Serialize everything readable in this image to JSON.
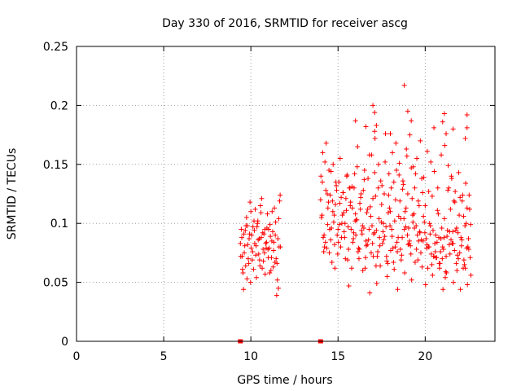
{
  "chart_data": {
    "type": "scatter",
    "title": "Day 330 of 2016, SRMTID for receiver ascg",
    "xlabel": "GPS time / hours",
    "ylabel": "SRMTID / TECUs",
    "xlim": [
      0,
      24
    ],
    "ylim": [
      0,
      0.25
    ],
    "xticks": [
      0,
      5,
      10,
      15,
      20
    ],
    "xtick_labels": [
      "0",
      "5",
      "10",
      "15",
      "20"
    ],
    "yticks": [
      0,
      0.05,
      0.1,
      0.15,
      0.2,
      0.25
    ],
    "ytick_labels": [
      "0",
      "0.05",
      "0.1",
      "0.15",
      "0.2",
      "0.25"
    ],
    "grid": true,
    "marker": "+",
    "colors": {
      "series": "#ff0000",
      "axes": "#000000",
      "grid": "#a0a0a0"
    },
    "series": [
      {
        "name": "SRMTID",
        "x": [
          9.4,
          9.5,
          9.6,
          9.7,
          9.8,
          9.9,
          10.0,
          10.1,
          10.2,
          10.3,
          10.4,
          10.5,
          10.6,
          10.7,
          10.8,
          10.9,
          11.0,
          11.1,
          11.2,
          11.3,
          11.4,
          11.5,
          11.6,
          11.7,
          9.45,
          9.55,
          9.65,
          9.75,
          9.85,
          9.95,
          10.05,
          10.15,
          10.25,
          10.35,
          10.45,
          10.55,
          10.65,
          10.75,
          10.85,
          10.95,
          11.05,
          11.15,
          11.25,
          11.35,
          11.45,
          11.55,
          11.65,
          9.42,
          9.58,
          9.72,
          9.88,
          10.02,
          10.18,
          10.32,
          10.48,
          10.62,
          10.78,
          10.92,
          11.08,
          11.22,
          11.38,
          11.52,
          11.68,
          9.48,
          9.62,
          9.78,
          9.92,
          10.08,
          10.22,
          10.38,
          10.52,
          10.68,
          10.82,
          10.98,
          11.12,
          11.28,
          11.42,
          11.58,
          9.52,
          9.68,
          9.82,
          9.98,
          10.12,
          10.28,
          10.42,
          10.58,
          10.72,
          10.88,
          11.02,
          11.18,
          11.32,
          11.48,
          11.62,
          14.0,
          14.1,
          14.2,
          14.3,
          14.4,
          14.5,
          14.6,
          14.7,
          14.8,
          14.9,
          15.0,
          15.1,
          15.2,
          15.3,
          15.4,
          15.5,
          15.6,
          15.7,
          15.8,
          15.9,
          16.0,
          16.1,
          16.2,
          16.3,
          16.4,
          16.5,
          16.6,
          16.7,
          16.8,
          16.9,
          17.0,
          17.1,
          17.2,
          17.3,
          17.4,
          17.5,
          17.6,
          17.7,
          17.8,
          17.9,
          18.0,
          18.1,
          18.2,
          18.3,
          18.4,
          18.5,
          18.6,
          18.7,
          18.8,
          18.9,
          19.0,
          19.1,
          19.2,
          19.3,
          19.4,
          19.5,
          19.6,
          19.7,
          19.8,
          19.9,
          20.0,
          20.1,
          20.2,
          20.3,
          20.4,
          20.5,
          20.6,
          20.7,
          20.8,
          20.9,
          21.0,
          21.1,
          21.2,
          21.3,
          21.4,
          21.5,
          21.6,
          21.7,
          21.8,
          21.9,
          22.0,
          22.1,
          22.2,
          22.3,
          22.4,
          22.5,
          22.6,
          14.05,
          14.15,
          14.25,
          14.35,
          14.45,
          14.55,
          14.65,
          14.75,
          14.85,
          14.95,
          15.05,
          15.15,
          15.25,
          15.35,
          15.45,
          15.55,
          15.65,
          15.75,
          15.85,
          15.95,
          16.05,
          16.15,
          16.25,
          16.35,
          16.45,
          16.55,
          16.65,
          16.75,
          16.85,
          16.95,
          17.05,
          17.15,
          17.25,
          17.35,
          17.45,
          17.55,
          17.65,
          17.75,
          17.85,
          17.95,
          18.05,
          18.15,
          18.25,
          18.35,
          18.45,
          18.55,
          18.65,
          18.75,
          18.85,
          18.95,
          19.05,
          19.15,
          19.25,
          19.35,
          19.45,
          19.55,
          19.65,
          19.75,
          19.85,
          19.95,
          20.05,
          20.15,
          20.25,
          20.35,
          20.45,
          20.55,
          20.65,
          20.75,
          20.85,
          20.95,
          21.05,
          21.15,
          21.25,
          21.35,
          21.45,
          21.55,
          21.65,
          21.75,
          21.85,
          21.95,
          22.05,
          22.15,
          22.25,
          22.35,
          22.45,
          22.55,
          14.02,
          14.22,
          14.42,
          14.62,
          14.82,
          15.02,
          15.22,
          15.42,
          15.62,
          15.82,
          16.02,
          16.22,
          16.42,
          16.62,
          16.82,
          17.02,
          17.22,
          17.42,
          17.62,
          17.82,
          18.02,
          18.22,
          18.42,
          18.62,
          18.82,
          19.02,
          19.22,
          19.42,
          19.62,
          19.82,
          20.02,
          20.22,
          20.42,
          20.62,
          20.82,
          21.02,
          21.22,
          21.42,
          21.62,
          21.82,
          22.02,
          22.22,
          22.42,
          22.62,
          14.12,
          14.32,
          14.52,
          14.72,
          14.92,
          15.12,
          15.32,
          15.52,
          15.72,
          15.92,
          16.12,
          16.32,
          16.52,
          16.72,
          16.92,
          17.12,
          17.32,
          17.52,
          17.72,
          17.92,
          18.12,
          18.32,
          18.52,
          18.72,
          18.92,
          19.12,
          19.32,
          19.52,
          19.72,
          19.92,
          20.12,
          20.32,
          20.52,
          20.72,
          20.92,
          21.12,
          21.32,
          21.52,
          21.72,
          21.92,
          22.12,
          22.32,
          22.52,
          14.08,
          14.28,
          14.48,
          14.68,
          14.88,
          15.08,
          15.28,
          15.48,
          15.68,
          15.88,
          16.08,
          16.28,
          16.48,
          16.68,
          16.88,
          17.08,
          17.28,
          17.48,
          17.68,
          17.88,
          18.08,
          18.28,
          18.48,
          18.68,
          18.88,
          19.08,
          19.28,
          19.48,
          19.68,
          19.88,
          20.08,
          20.28,
          20.48,
          20.68,
          20.88,
          21.08,
          21.28,
          21.48,
          21.68,
          21.88,
          22.08,
          22.28,
          22.48,
          14.18,
          14.38,
          14.58,
          14.78,
          14.98,
          15.18,
          15.38,
          15.58,
          15.78,
          15.98,
          16.18,
          16.38,
          16.58,
          16.78,
          16.98,
          17.18,
          17.38,
          17.58,
          17.78,
          17.98,
          18.18,
          18.38,
          18.58,
          18.78,
          18.98,
          19.18,
          19.38,
          19.58,
          19.78,
          19.98,
          20.18,
          20.38,
          20.58,
          20.78,
          20.98,
          21.18,
          21.38,
          21.58,
          21.78,
          21.98,
          22.18,
          22.38,
          22.58,
          18.8,
          17.0,
          17.1,
          19.0,
          21.1,
          22.4,
          22.4,
          21.0,
          19.2,
          17.2,
          16.0,
          20.5,
          21.6,
          21.2,
          22.3,
          17.1,
          18.0,
          16.6
        ],
        "y": [
          0.083,
          0.072,
          0.091,
          0.064,
          0.098,
          0.087,
          0.11,
          0.076,
          0.094,
          0.081,
          0.102,
          0.069,
          0.088,
          0.078,
          0.095,
          0.084,
          0.071,
          0.099,
          0.085,
          0.077,
          0.09,
          0.066,
          0.104,
          0.08,
          0.095,
          0.058,
          0.081,
          0.105,
          0.07,
          0.118,
          0.09,
          0.061,
          0.112,
          0.097,
          0.074,
          0.115,
          0.062,
          0.091,
          0.083,
          0.108,
          0.079,
          0.06,
          0.093,
          0.113,
          0.07,
          0.087,
          0.119,
          0.072,
          0.044,
          0.098,
          0.066,
          0.079,
          0.102,
          0.054,
          0.087,
          0.121,
          0.075,
          0.096,
          0.058,
          0.11,
          0.067,
          0.052,
          0.124,
          0.088,
          0.075,
          0.053,
          0.091,
          0.069,
          0.083,
          0.1,
          0.064,
          0.092,
          0.057,
          0.078,
          0.089,
          0.063,
          0.101,
          0.045,
          0.061,
          0.094,
          0.082,
          0.05,
          0.097,
          0.073,
          0.086,
          0.109,
          0.068,
          0.079,
          0.095,
          0.071,
          0.084,
          0.039,
          0.08,
          0.12,
          0.135,
          0.09,
          0.128,
          0.099,
          0.075,
          0.144,
          0.11,
          0.082,
          0.132,
          0.095,
          0.117,
          0.088,
          0.126,
          0.1,
          0.14,
          0.078,
          0.115,
          0.131,
          0.092,
          0.108,
          0.148,
          0.07,
          0.122,
          0.098,
          0.137,
          0.085,
          0.112,
          0.158,
          0.075,
          0.121,
          0.143,
          0.094,
          0.13,
          0.081,
          0.116,
          0.1,
          0.152,
          0.068,
          0.124,
          0.11,
          0.089,
          0.135,
          0.12,
          0.076,
          0.141,
          0.104,
          0.129,
          0.095,
          0.113,
          0.125,
          0.085,
          0.147,
          0.101,
          0.13,
          0.078,
          0.119,
          0.092,
          0.138,
          0.106,
          0.115,
          0.082,
          0.127,
          0.098,
          0.123,
          0.072,
          0.09,
          0.111,
          0.066,
          0.087,
          0.08,
          0.104,
          0.072,
          0.128,
          0.093,
          0.14,
          0.083,
          0.118,
          0.096,
          0.07,
          0.122,
          0.086,
          0.106,
          0.062,
          0.113,
          0.078,
          0.099,
          0.105,
          0.088,
          0.152,
          0.079,
          0.118,
          0.124,
          0.067,
          0.101,
          0.116,
          0.09,
          0.135,
          0.08,
          0.107,
          0.093,
          0.121,
          0.069,
          0.13,
          0.095,
          0.084,
          0.142,
          0.103,
          0.076,
          0.117,
          0.094,
          0.128,
          0.062,
          0.109,
          0.086,
          0.114,
          0.098,
          0.091,
          0.123,
          0.072,
          0.104,
          0.136,
          0.083,
          0.125,
          0.097,
          0.066,
          0.113,
          0.13,
          0.079,
          0.102,
          0.145,
          0.088,
          0.119,
          0.073,
          0.133,
          0.11,
          0.157,
          0.096,
          0.081,
          0.121,
          0.108,
          0.142,
          0.09,
          0.115,
          0.075,
          0.126,
          0.101,
          0.087,
          0.062,
          0.1,
          0.074,
          0.094,
          0.083,
          0.071,
          0.108,
          0.066,
          0.096,
          0.078,
          0.054,
          0.089,
          0.13,
          0.112,
          0.083,
          0.119,
          0.094,
          0.073,
          0.107,
          0.088,
          0.124,
          0.065,
          0.1,
          0.08,
          0.112,
          0.14,
          0.08,
          0.113,
          0.096,
          0.062,
          0.084,
          0.1,
          0.07,
          0.047,
          0.113,
          0.09,
          0.078,
          0.06,
          0.081,
          0.041,
          0.072,
          0.049,
          0.064,
          0.086,
          0.055,
          0.077,
          0.061,
          0.044,
          0.069,
          0.058,
          0.082,
          0.052,
          0.067,
          0.085,
          0.063,
          0.048,
          0.08,
          0.056,
          0.071,
          0.062,
          0.044,
          0.058,
          0.074,
          0.05,
          0.06,
          0.044,
          0.069,
          0.048,
          0.056,
          0.16,
          0.168,
          0.095,
          0.15,
          0.128,
          0.155,
          0.109,
          0.141,
          0.118,
          0.13,
          0.165,
          0.125,
          0.145,
          0.138,
          0.158,
          0.172,
          0.15,
          0.132,
          0.176,
          0.142,
          0.16,
          0.168,
          0.151,
          0.136,
          0.163,
          0.175,
          0.148,
          0.155,
          0.17,
          0.139,
          0.161,
          0.152,
          0.144,
          0.13,
          0.158,
          0.166,
          0.149,
          0.138,
          0.127,
          0.143,
          0.119,
          0.134,
          0.124,
          0.107,
          0.084,
          0.145,
          0.119,
          0.135,
          0.099,
          0.126,
          0.111,
          0.13,
          0.087,
          0.103,
          0.112,
          0.096,
          0.082,
          0.106,
          0.092,
          0.076,
          0.101,
          0.089,
          0.109,
          0.095,
          0.08,
          0.106,
          0.088,
          0.097,
          0.083,
          0.107,
          0.098,
          0.093,
          0.085,
          0.079,
          0.091,
          0.072,
          0.084,
          0.076,
          0.088,
          0.094,
          0.086,
          0.077,
          0.092,
          0.081,
          0.098,
          0.087,
          0.076,
          0.125,
          0.086,
          0.107,
          0.074,
          0.122,
          0.088,
          0.097,
          0.062,
          0.102,
          0.079,
          0.091,
          0.071,
          0.095,
          0.083,
          0.064,
          0.088,
          0.093,
          0.072,
          0.098,
          0.067,
          0.084,
          0.078,
          0.104,
          0.09,
          0.074,
          0.096,
          0.069,
          0.086,
          0.092,
          0.08,
          0.065,
          0.076,
          0.088,
          0.07,
          0.059,
          0.082,
          0.093,
          0.066,
          0.075,
          0.062,
          0.079,
          0.071,
          0.217,
          0.2,
          0.194,
          0.195,
          0.193,
          0.192,
          0.181,
          0.186,
          0.187,
          0.183,
          0.187,
          0.181,
          0.18,
          0.176,
          0.172,
          0.178,
          0.176,
          0.182
        ],
        "flag_x": [
          9.4,
          14.0
        ],
        "flag_y": [
          0,
          0
        ]
      }
    ]
  }
}
